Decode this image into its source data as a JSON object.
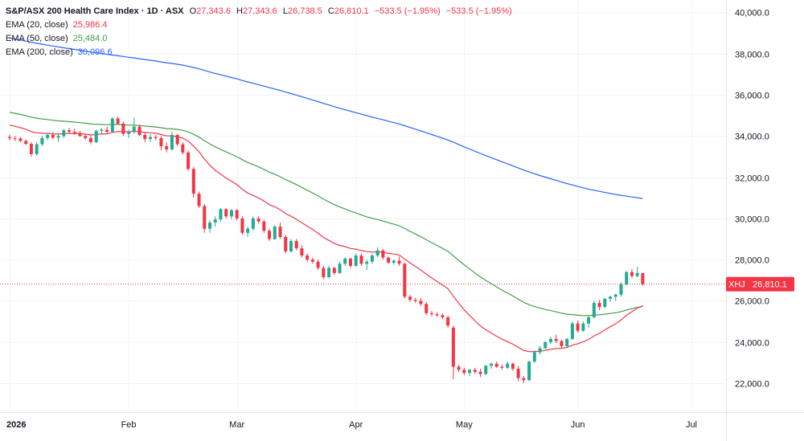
{
  "header": {
    "title": "S&P/ASX 200 Health Care Index · 1D · ASX",
    "ohlc": [
      {
        "k": "O",
        "v": "27,343.6"
      },
      {
        "k": "H",
        "v": "27,343.6"
      },
      {
        "k": "L",
        "v": "26,738.5"
      },
      {
        "k": "C",
        "v": "26,810.1"
      }
    ],
    "change": "−533.5 (−1.95%)",
    "change2": "−533.5 (−1.95%)"
  },
  "indicators": [
    {
      "label": "EMA (20, close)",
      "value": "25,986.4",
      "color": "#f23645"
    },
    {
      "label": "EMA (50, close)",
      "value": "25,484.0",
      "color": "#43a047"
    },
    {
      "label": "EMA (200, close)",
      "value": "30,096.6",
      "color": "#2962ff"
    }
  ],
  "colors": {
    "up": "#22ab94",
    "down": "#f23645",
    "grid": "#f0f3fa",
    "axis": "#e0e3eb"
  },
  "chart_data": {
    "type": "candlestick",
    "y_ticks": [
      "22,000.0",
      "24,000.0",
      "26,000.0",
      "28,000.0",
      "30,000.0",
      "32,000.0",
      "34,000.0",
      "36,000.0",
      "38,000.0",
      "40,000.0"
    ],
    "y_tick_values": [
      22000,
      24000,
      26000,
      28000,
      30000,
      32000,
      34000,
      36000,
      38000,
      40000
    ],
    "ylim": [
      20600,
      40600
    ],
    "x_ticks": [
      {
        "label": "2026",
        "index": 0,
        "bold": true
      },
      {
        "label": "Feb",
        "index": 22
      },
      {
        "label": "Mar",
        "index": 42
      },
      {
        "label": "Apr",
        "index": 64
      },
      {
        "label": "May",
        "index": 84
      },
      {
        "label": "Jun",
        "index": 105
      },
      {
        "label": "Jul",
        "index": 126
      }
    ],
    "grid": true,
    "price_tag": {
      "symbol": "XHJ",
      "value": "26,810.1",
      "y": 26810.1
    },
    "candles": [
      [
        33950,
        34060,
        33780,
        33900
      ],
      [
        33900,
        34000,
        33750,
        33880
      ],
      [
        33880,
        33950,
        33700,
        33760
      ],
      [
        33760,
        33830,
        33550,
        33620
      ],
      [
        33620,
        33700,
        33000,
        33120
      ],
      [
        33120,
        33700,
        33050,
        33600
      ],
      [
        33600,
        34000,
        33500,
        33900
      ],
      [
        33900,
        34150,
        33800,
        34050
      ],
      [
        34050,
        34200,
        33850,
        33920
      ],
      [
        33920,
        34100,
        33700,
        34000
      ],
      [
        34000,
        34350,
        33900,
        34280
      ],
      [
        34280,
        34400,
        34100,
        34200
      ],
      [
        34200,
        34350,
        34050,
        34150
      ],
      [
        34150,
        34250,
        33950,
        34000
      ],
      [
        34000,
        34100,
        33800,
        33900
      ],
      [
        33900,
        34050,
        33600,
        33700
      ],
      [
        33700,
        34300,
        33650,
        34250
      ],
      [
        34250,
        34400,
        34100,
        34300
      ],
      [
        34300,
        34450,
        34150,
        34200
      ],
      [
        34200,
        34900,
        34150,
        34850
      ],
      [
        34850,
        34950,
        34550,
        34600
      ],
      [
        34600,
        34700,
        34000,
        34100
      ],
      [
        34100,
        34300,
        33900,
        34200
      ],
      [
        34200,
        34900,
        34100,
        34450
      ],
      [
        34450,
        34550,
        34000,
        34050
      ],
      [
        34050,
        34200,
        33700,
        33850
      ],
      [
        33850,
        34100,
        33700,
        33950
      ],
      [
        33950,
        34050,
        33800,
        33900
      ],
      [
        33900,
        34000,
        33300,
        33500
      ],
      [
        33500,
        33700,
        33200,
        33350
      ],
      [
        33350,
        34200,
        33300,
        34050
      ],
      [
        34050,
        34100,
        33500,
        33600
      ],
      [
        33600,
        33700,
        33100,
        33200
      ],
      [
        33200,
        33300,
        32300,
        32400
      ],
      [
        32400,
        32500,
        31000,
        31200
      ],
      [
        31200,
        31300,
        30500,
        30600
      ],
      [
        30600,
        30700,
        29300,
        29500
      ],
      [
        29500,
        29900,
        29300,
        29800
      ],
      [
        29800,
        30100,
        29600,
        29950
      ],
      [
        29950,
        30500,
        29850,
        30450
      ],
      [
        30450,
        30500,
        30000,
        30100
      ],
      [
        30100,
        30450,
        29950,
        30400
      ],
      [
        30400,
        30450,
        29900,
        30000
      ],
      [
        30000,
        30100,
        29200,
        29300
      ],
      [
        29300,
        29600,
        29100,
        29500
      ],
      [
        29500,
        30100,
        29400,
        30000
      ],
      [
        30000,
        30100,
        29750,
        29850
      ],
      [
        29850,
        29950,
        29300,
        29400
      ],
      [
        29400,
        29500,
        28900,
        29000
      ],
      [
        29000,
        29700,
        28950,
        29600
      ],
      [
        29600,
        29800,
        29000,
        29100
      ],
      [
        29100,
        29200,
        28300,
        28400
      ],
      [
        28400,
        29000,
        28350,
        28900
      ],
      [
        28900,
        29000,
        28450,
        28550
      ],
      [
        28550,
        28700,
        28100,
        28200
      ],
      [
        28200,
        28300,
        27900,
        28000
      ],
      [
        28000,
        28100,
        27800,
        27900
      ],
      [
        27900,
        28000,
        27500,
        27600
      ],
      [
        27600,
        27700,
        27050,
        27150
      ],
      [
        27150,
        27700,
        27100,
        27600
      ],
      [
        27600,
        27650,
        27250,
        27350
      ],
      [
        27350,
        27900,
        27300,
        27800
      ],
      [
        27800,
        28100,
        27700,
        28050
      ],
      [
        28050,
        28100,
        27600,
        27700
      ],
      [
        27700,
        28300,
        27650,
        28200
      ],
      [
        28200,
        28300,
        27700,
        27800
      ],
      [
        27800,
        28000,
        27500,
        27900
      ],
      [
        27900,
        28300,
        27800,
        28200
      ],
      [
        28200,
        28600,
        28100,
        28450
      ],
      [
        28450,
        28500,
        28000,
        28100
      ],
      [
        28100,
        28150,
        27800,
        27850
      ],
      [
        27850,
        28000,
        27750,
        27950
      ],
      [
        27950,
        28150,
        27700,
        27800
      ],
      [
        27800,
        27850,
        26100,
        26200
      ],
      [
        26200,
        26300,
        25950,
        26050
      ],
      [
        26050,
        26150,
        25900,
        26000
      ],
      [
        26000,
        26150,
        25750,
        25850
      ],
      [
        25850,
        25950,
        25300,
        25400
      ],
      [
        25400,
        25500,
        25250,
        25350
      ],
      [
        25350,
        25450,
        25200,
        25300
      ],
      [
        25300,
        25400,
        25100,
        25200
      ],
      [
        25200,
        25300,
        24700,
        24800
      ],
      [
        24700,
        24800,
        22200,
        22800
      ],
      [
        22800,
        22900,
        22550,
        22650
      ],
      [
        22650,
        22750,
        22400,
        22500
      ],
      [
        22500,
        22700,
        22350,
        22650
      ],
      [
        22650,
        22750,
        22450,
        22550
      ],
      [
        22550,
        22700,
        22300,
        22450
      ],
      [
        22450,
        22900,
        22400,
        22850
      ],
      [
        22850,
        23000,
        22700,
        22950
      ],
      [
        22950,
        23050,
        22750,
        22800
      ],
      [
        22800,
        22900,
        22650,
        22750
      ],
      [
        22750,
        23050,
        22700,
        22950
      ],
      [
        22950,
        23000,
        22600,
        22700
      ],
      [
        22700,
        22850,
        22100,
        22250
      ],
      [
        22250,
        22350,
        22000,
        22150
      ],
      [
        22150,
        23100,
        22100,
        23050
      ],
      [
        23050,
        23600,
        23000,
        23500
      ],
      [
        23500,
        23800,
        23400,
        23700
      ],
      [
        23700,
        24050,
        23650,
        24000
      ],
      [
        24000,
        24250,
        23900,
        24150
      ],
      [
        24150,
        24350,
        23950,
        24050
      ],
      [
        24050,
        24100,
        23700,
        23800
      ],
      [
        23800,
        24200,
        23750,
        24150
      ],
      [
        24150,
        25000,
        24100,
        24900
      ],
      [
        24900,
        25050,
        24450,
        24550
      ],
      [
        24550,
        25000,
        24500,
        24900
      ],
      [
        24900,
        25300,
        24700,
        25200
      ],
      [
        25200,
        26000,
        25150,
        25900
      ],
      [
        25900,
        26050,
        25550,
        25700
      ],
      [
        25700,
        26150,
        25650,
        26100
      ],
      [
        26100,
        26250,
        25950,
        26200
      ],
      [
        26200,
        26350,
        26000,
        26300
      ],
      [
        26300,
        26900,
        26200,
        26800
      ],
      [
        26800,
        27450,
        26750,
        27400
      ],
      [
        27400,
        27550,
        27100,
        27200
      ],
      [
        27200,
        27650,
        27150,
        27350
      ],
      [
        27343.6,
        27343.6,
        26738.5,
        26810.1
      ]
    ],
    "ema20_last": 25986.4,
    "ema50_last": 25484.0,
    "ema200_last": 30096.6
  }
}
